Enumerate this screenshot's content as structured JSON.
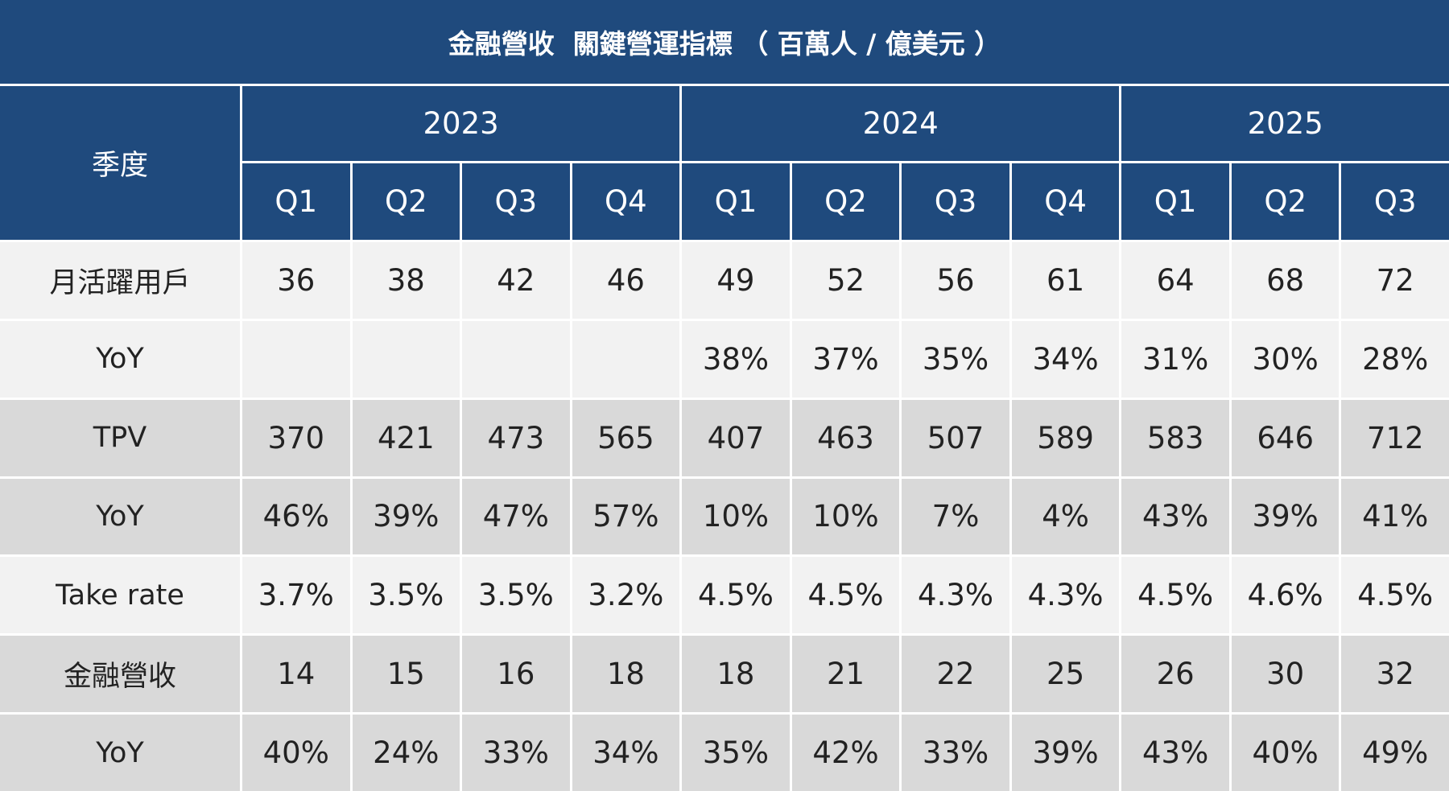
{
  "title": "金融營收  關鍵營運指標 （ 百萬人 / 億美元 ）",
  "table": {
    "corner": "季度",
    "years": [
      {
        "year": "2023",
        "quarters": [
          "Q1",
          "Q2",
          "Q3",
          "Q4"
        ]
      },
      {
        "year": "2024",
        "quarters": [
          "Q1",
          "Q2",
          "Q3",
          "Q4"
        ]
      },
      {
        "year": "2025",
        "quarters": [
          "Q1",
          "Q2",
          "Q3"
        ]
      }
    ],
    "rows": [
      {
        "label": "月活躍用戶",
        "cells": [
          "36",
          "38",
          "42",
          "46",
          "49",
          "52",
          "56",
          "61",
          "64",
          "68",
          "72"
        ]
      },
      {
        "label": "YoY",
        "cells": [
          null,
          null,
          null,
          null,
          "38%",
          "37%",
          "35%",
          "34%",
          "31%",
          "30%",
          "28%"
        ]
      },
      {
        "label": "TPV",
        "cells": [
          "370",
          "421",
          "473",
          "565",
          "407",
          "463",
          "507",
          "589",
          "583",
          "646",
          "712"
        ]
      },
      {
        "label": "YoY",
        "cells": [
          "46%",
          "39%",
          "47%",
          "57%",
          "10%",
          "10%",
          "7%",
          "4%",
          "43%",
          "39%",
          "41%"
        ]
      },
      {
        "label": "Take rate",
        "cells": [
          "3.7%",
          "3.5%",
          "3.5%",
          "3.2%",
          "4.5%",
          "4.5%",
          "4.3%",
          "4.3%",
          "4.5%",
          "4.6%",
          "4.5%"
        ]
      },
      {
        "label": "金融營收",
        "cells": [
          "14",
          "15",
          "16",
          "18",
          "18",
          "21",
          "22",
          "25",
          "26",
          "30",
          "32"
        ]
      },
      {
        "label": "YoY",
        "cells": [
          "40%",
          "24%",
          "33%",
          "34%",
          "35%",
          "42%",
          "33%",
          "39%",
          "43%",
          "40%",
          "49%"
        ]
      }
    ]
  }
}
